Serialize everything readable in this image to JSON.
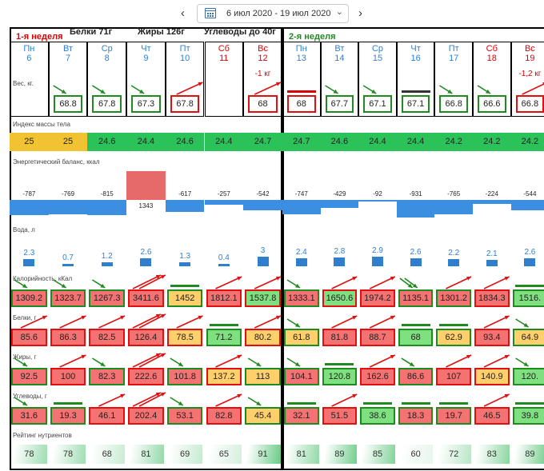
{
  "header": {
    "date_range": "6 июл 2020 - 19 июл 2020",
    "prev_glyph": "‹",
    "next_glyph": "›",
    "dropdown_glyph": "⌄"
  },
  "macros": {
    "protein": "Белки 71г",
    "fat": "Жиры 126г",
    "carbs": "Углеводы до 40г"
  },
  "colors": {
    "green": "#1f8a1f",
    "red": "#e01010",
    "orange": "#e7a400",
    "fill_red": "#f47272",
    "fill_green": "#7ee07e",
    "fill_yellow": "#ffcf6b",
    "bmi_green": "#2cc25a",
    "bmi_yellow": "#f1c232"
  },
  "weeks": [
    {
      "label": "1-я неделя",
      "days": [
        {
          "name": "Пн",
          "num": "6",
          "weekend": false,
          "delta": "",
          "weight": "",
          "weight_color": "",
          "weight_arrow": ""
        },
        {
          "name": "Вт",
          "num": "7",
          "weekend": false,
          "delta": "",
          "weight": "68.8",
          "weight_color": "green",
          "weight_arrow": "down"
        },
        {
          "name": "Ср",
          "num": "8",
          "weekend": false,
          "delta": "",
          "weight": "67.8",
          "weight_color": "green",
          "weight_arrow": "down"
        },
        {
          "name": "Чт",
          "num": "9",
          "weekend": false,
          "delta": "",
          "weight": "67.3",
          "weight_color": "green",
          "weight_arrow": "down"
        },
        {
          "name": "Пт",
          "num": "10",
          "weekend": false,
          "delta": "",
          "weight": "67.8",
          "weight_color": "red",
          "weight_arrow": "up"
        },
        {
          "name": "Сб",
          "num": "11",
          "weekend": true,
          "delta": "",
          "weight": "",
          "weight_color": "",
          "weight_arrow": ""
        },
        {
          "name": "Вс",
          "num": "12",
          "weekend": true,
          "delta": "-1 кг",
          "weight": "68",
          "weight_color": "red",
          "weight_arrow": "up"
        }
      ]
    },
    {
      "label": "2-я неделя",
      "days": [
        {
          "name": "Пн",
          "num": "13",
          "weekend": false,
          "delta": "",
          "weight": "68",
          "weight_color": "red",
          "weight_arrow": "bar-red"
        },
        {
          "name": "Вт",
          "num": "14",
          "weekend": false,
          "delta": "",
          "weight": "67.7",
          "weight_color": "green",
          "weight_arrow": "down"
        },
        {
          "name": "Ср",
          "num": "15",
          "weekend": false,
          "delta": "",
          "weight": "67.1",
          "weight_color": "green",
          "weight_arrow": "down"
        },
        {
          "name": "Чт",
          "num": "16",
          "weekend": false,
          "delta": "",
          "weight": "67.1",
          "weight_color": "green",
          "weight_arrow": "bar-dark"
        },
        {
          "name": "Пт",
          "num": "17",
          "weekend": false,
          "delta": "",
          "weight": "66.8",
          "weight_color": "green",
          "weight_arrow": "down"
        },
        {
          "name": "Сб",
          "num": "18",
          "weekend": true,
          "delta": "",
          "weight": "66.6",
          "weight_color": "green",
          "weight_arrow": "down"
        },
        {
          "name": "Вс",
          "num": "19",
          "weekend": true,
          "delta": "-1,2 кг",
          "weight": "66.8",
          "weight_color": "red",
          "weight_arrow": "up"
        }
      ]
    }
  ],
  "labels": {
    "weight": "Вес, кг.",
    "bmi": "Индекс массы тела",
    "energy": "Энергетический баланс, ккал",
    "water": "Вода, л",
    "calories": "Калорийность, кКал",
    "protein": "Белки, г",
    "fat": "Жиры, г",
    "carbs": "Углеводы, г",
    "rating": "Рейтинг нутриентов"
  },
  "bmi": [
    {
      "v": "25",
      "c": "yellow"
    },
    {
      "v": "25",
      "c": "yellow"
    },
    {
      "v": "24.6",
      "c": "green"
    },
    {
      "v": "24.4",
      "c": "green"
    },
    {
      "v": "24.6",
      "c": "green"
    },
    {
      "v": "24.4",
      "c": "green"
    },
    {
      "v": "24.7",
      "c": "green"
    },
    {
      "v": "24.7",
      "c": "green"
    },
    {
      "v": "24.6",
      "c": "green"
    },
    {
      "v": "24.4",
      "c": "green"
    },
    {
      "v": "24.4",
      "c": "green"
    },
    {
      "v": "24.2",
      "c": "green"
    },
    {
      "v": "24.2",
      "c": "green"
    },
    {
      "v": "24.2",
      "c": "green"
    }
  ],
  "energy": {
    "labels": [
      "-787",
      "-769",
      "-815",
      "1343",
      "-617",
      "-257",
      "-542",
      "-747",
      "-429",
      "-92",
      "-931",
      "-765",
      "-224",
      "-544"
    ],
    "values": [
      -787,
      -769,
      -815,
      1343,
      -617,
      -257,
      -542,
      -747,
      -429,
      -92,
      -931,
      -765,
      -224,
      -544
    ]
  },
  "water": {
    "labels": [
      "2.3",
      "0.7",
      "1.2",
      "2.6",
      "1.3",
      "0.4",
      "3",
      "2.4",
      "2.8",
      "2.9",
      "2.6",
      "2.2",
      "2.1",
      "2.6"
    ],
    "values": [
      2.3,
      0.7,
      1.2,
      2.6,
      1.3,
      0.4,
      3,
      2.4,
      2.8,
      2.9,
      2.6,
      2.2,
      2.1,
      2.6
    ]
  },
  "calories": [
    {
      "v": "1309.2",
      "fill": "red",
      "border": "green",
      "mark": "down"
    },
    {
      "v": "1323.7",
      "fill": "red",
      "border": "green",
      "mark": "down"
    },
    {
      "v": "1267.3",
      "fill": "red",
      "border": "green",
      "mark": "down"
    },
    {
      "v": "3411.6",
      "fill": "red",
      "border": "red",
      "mark": "up2"
    },
    {
      "v": "1452",
      "fill": "yellow",
      "border": "green",
      "mark": "bar-green"
    },
    {
      "v": "1812.1",
      "fill": "red",
      "border": "red",
      "mark": "up"
    },
    {
      "v": "1537.8",
      "fill": "green",
      "border": "red",
      "mark": "up"
    },
    {
      "v": "1333.1",
      "fill": "red",
      "border": "green",
      "mark": "down"
    },
    {
      "v": "1650.6",
      "fill": "green",
      "border": "red",
      "mark": "up"
    },
    {
      "v": "1974.2",
      "fill": "red",
      "border": "red",
      "mark": "up"
    },
    {
      "v": "1135.1",
      "fill": "red",
      "border": "green",
      "mark": "down2"
    },
    {
      "v": "1301.2",
      "fill": "red",
      "border": "green",
      "mark": "up"
    },
    {
      "v": "1834.3",
      "fill": "red",
      "border": "red",
      "mark": "up"
    },
    {
      "v": "1516.",
      "fill": "green",
      "border": "green",
      "mark": "bar-green"
    }
  ],
  "protein": [
    {
      "v": "85.6",
      "fill": "red",
      "border": "red",
      "mark": "up"
    },
    {
      "v": "86.3",
      "fill": "red",
      "border": "red",
      "mark": "up"
    },
    {
      "v": "82.5",
      "fill": "red",
      "border": "red",
      "mark": "up"
    },
    {
      "v": "126.4",
      "fill": "red",
      "border": "red",
      "mark": "up2"
    },
    {
      "v": "78.5",
      "fill": "yellow",
      "border": "red",
      "mark": "up"
    },
    {
      "v": "71.2",
      "fill": "green",
      "border": "green",
      "mark": "bar-green"
    },
    {
      "v": "80.2",
      "fill": "yellow",
      "border": "red",
      "mark": "up"
    },
    {
      "v": "61.8",
      "fill": "yellow",
      "border": "green",
      "mark": "down"
    },
    {
      "v": "81.8",
      "fill": "red",
      "border": "red",
      "mark": "up"
    },
    {
      "v": "88.7",
      "fill": "red",
      "border": "red",
      "mark": "up"
    },
    {
      "v": "68",
      "fill": "green",
      "border": "green",
      "mark": "bar-green"
    },
    {
      "v": "62.9",
      "fill": "yellow",
      "border": "green",
      "mark": "bar-green"
    },
    {
      "v": "93.4",
      "fill": "red",
      "border": "red",
      "mark": "up"
    },
    {
      "v": "64.9",
      "fill": "yellow",
      "border": "green",
      "mark": "down"
    }
  ],
  "fat": [
    {
      "v": "92.5",
      "fill": "red",
      "border": "green",
      "mark": "down"
    },
    {
      "v": "100",
      "fill": "red",
      "border": "red",
      "mark": "up"
    },
    {
      "v": "82.3",
      "fill": "red",
      "border": "green",
      "mark": "down"
    },
    {
      "v": "222.6",
      "fill": "red",
      "border": "red",
      "mark": "up2"
    },
    {
      "v": "101.8",
      "fill": "red",
      "border": "green",
      "mark": "down"
    },
    {
      "v": "137.2",
      "fill": "yellow",
      "border": "red",
      "mark": "up"
    },
    {
      "v": "113",
      "fill": "yellow",
      "border": "green",
      "mark": "down"
    },
    {
      "v": "104.1",
      "fill": "red",
      "border": "green",
      "mark": "down"
    },
    {
      "v": "120.8",
      "fill": "green",
      "border": "green",
      "mark": "bar-green"
    },
    {
      "v": "162.6",
      "fill": "red",
      "border": "red",
      "mark": "up"
    },
    {
      "v": "86.6",
      "fill": "red",
      "border": "green",
      "mark": "down"
    },
    {
      "v": "107",
      "fill": "red",
      "border": "red",
      "mark": "up"
    },
    {
      "v": "140.9",
      "fill": "yellow",
      "border": "red",
      "mark": "up"
    },
    {
      "v": "120.",
      "fill": "green",
      "border": "green",
      "mark": "down"
    }
  ],
  "carbs": [
    {
      "v": "31.6",
      "fill": "red",
      "border": "green",
      "mark": "down"
    },
    {
      "v": "19.3",
      "fill": "red",
      "border": "green",
      "mark": "bar-green"
    },
    {
      "v": "46.1",
      "fill": "red",
      "border": "red",
      "mark": "up"
    },
    {
      "v": "202.4",
      "fill": "red",
      "border": "red",
      "mark": "up2"
    },
    {
      "v": "53.1",
      "fill": "red",
      "border": "green",
      "mark": "down"
    },
    {
      "v": "82.8",
      "fill": "red",
      "border": "red",
      "mark": "up"
    },
    {
      "v": "45.4",
      "fill": "yellow",
      "border": "green",
      "mark": "down"
    },
    {
      "v": "32.1",
      "fill": "red",
      "border": "green",
      "mark": "bar-green"
    },
    {
      "v": "51.5",
      "fill": "red",
      "border": "red",
      "mark": "up"
    },
    {
      "v": "38.6",
      "fill": "green",
      "border": "green",
      "mark": "bar-green"
    },
    {
      "v": "18.3",
      "fill": "red",
      "border": "green",
      "mark": "bar-green"
    },
    {
      "v": "19.7",
      "fill": "red",
      "border": "green",
      "mark": "bar-green"
    },
    {
      "v": "46.5",
      "fill": "red",
      "border": "red",
      "mark": "up"
    },
    {
      "v": "39.8",
      "fill": "green",
      "border": "green",
      "mark": "bar-green"
    }
  ],
  "rating": [
    "78",
    "78",
    "68",
    "81",
    "69",
    "65",
    "91",
    "81",
    "89",
    "85",
    "60",
    "72",
    "83",
    "89"
  ]
}
